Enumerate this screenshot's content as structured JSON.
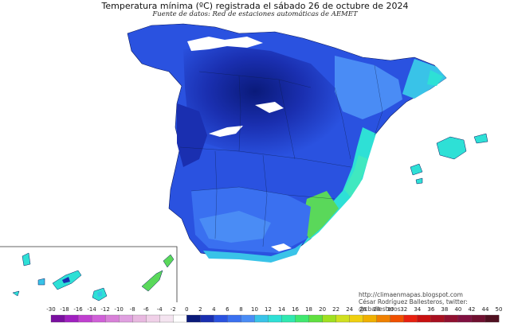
{
  "header": {
    "title": "Temperatura mínima (ºC) registrada el sábado 26 de octubre de 2024",
    "subtitle": "Fuente de datos: Red de estaciones automáticas de AEMET"
  },
  "credits": {
    "url": "http://climaenmapas.blogspot.com",
    "author": "César Rodríguez Ballesteros, twitter: @cballesteros"
  },
  "colors": {
    "sea": "#ffffff",
    "deep_navy": "#0a1a7a",
    "navy": "#1a2fb0",
    "blue": "#2a52e0",
    "mid_blue": "#3a70f0",
    "light_blue": "#4a8cf5",
    "sky": "#39c3e8",
    "cyan": "#2ee0d6",
    "teal": "#40e8c0",
    "green": "#5ad85a",
    "snow": "#ffffff"
  },
  "legend": {
    "labels": [
      "-30",
      "-18",
      "-16",
      "-14",
      "-12",
      "-10",
      "-8",
      "-6",
      "-4",
      "-2",
      "0",
      "2",
      "4",
      "6",
      "8",
      "10",
      "12",
      "14",
      "16",
      "18",
      "20",
      "22",
      "24",
      "26",
      "28",
      "30",
      "32",
      "34",
      "36",
      "38",
      "40",
      "42",
      "44",
      "50"
    ],
    "colors": [
      "#7a10a0",
      "#a020c0",
      "#c040d0",
      "#d060d8",
      "#d880d8",
      "#e0a0e0",
      "#e8b8e0",
      "#f0d0e8",
      "#f4e4f0",
      "#ffffff",
      "#0a1a7a",
      "#1a2fb0",
      "#2a52e0",
      "#3a70f0",
      "#4a8cf5",
      "#39c3e8",
      "#2ee0d6",
      "#30e8b0",
      "#40e870",
      "#60e040",
      "#a0e020",
      "#d0e020",
      "#f0d010",
      "#f0b000",
      "#f08000",
      "#f05000",
      "#e82010",
      "#c81010",
      "#a81020",
      "#901030",
      "#801040",
      "#701030",
      "#501020"
    ]
  }
}
